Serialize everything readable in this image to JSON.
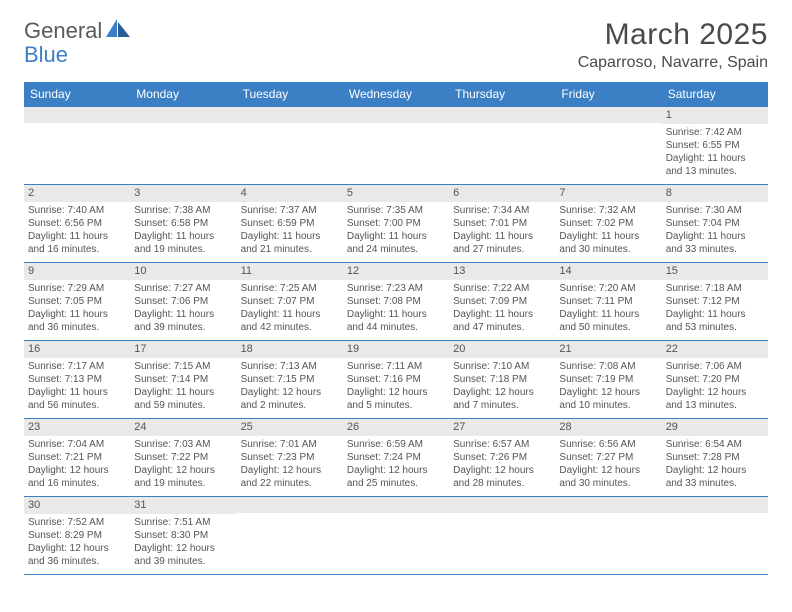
{
  "logo": {
    "text1": "General",
    "text2": "Blue"
  },
  "title": "March 2025",
  "location": "Caparroso, Navarre, Spain",
  "colors": {
    "header_bg": "#3b7fc4",
    "header_text": "#ffffff",
    "border": "#3b7fc4",
    "daynum_bg": "#e9e9e9",
    "body_text": "#555555",
    "page_bg": "#ffffff"
  },
  "weekdays": [
    "Sunday",
    "Monday",
    "Tuesday",
    "Wednesday",
    "Thursday",
    "Friday",
    "Saturday"
  ],
  "weeks": [
    [
      {
        "n": "",
        "lines": [
          "",
          "",
          "",
          ""
        ]
      },
      {
        "n": "",
        "lines": [
          "",
          "",
          "",
          ""
        ]
      },
      {
        "n": "",
        "lines": [
          "",
          "",
          "",
          ""
        ]
      },
      {
        "n": "",
        "lines": [
          "",
          "",
          "",
          ""
        ]
      },
      {
        "n": "",
        "lines": [
          "",
          "",
          "",
          ""
        ]
      },
      {
        "n": "",
        "lines": [
          "",
          "",
          "",
          ""
        ]
      },
      {
        "n": "1",
        "lines": [
          "Sunrise: 7:42 AM",
          "Sunset: 6:55 PM",
          "Daylight: 11 hours",
          "and 13 minutes."
        ]
      }
    ],
    [
      {
        "n": "2",
        "lines": [
          "Sunrise: 7:40 AM",
          "Sunset: 6:56 PM",
          "Daylight: 11 hours",
          "and 16 minutes."
        ]
      },
      {
        "n": "3",
        "lines": [
          "Sunrise: 7:38 AM",
          "Sunset: 6:58 PM",
          "Daylight: 11 hours",
          "and 19 minutes."
        ]
      },
      {
        "n": "4",
        "lines": [
          "Sunrise: 7:37 AM",
          "Sunset: 6:59 PM",
          "Daylight: 11 hours",
          "and 21 minutes."
        ]
      },
      {
        "n": "5",
        "lines": [
          "Sunrise: 7:35 AM",
          "Sunset: 7:00 PM",
          "Daylight: 11 hours",
          "and 24 minutes."
        ]
      },
      {
        "n": "6",
        "lines": [
          "Sunrise: 7:34 AM",
          "Sunset: 7:01 PM",
          "Daylight: 11 hours",
          "and 27 minutes."
        ]
      },
      {
        "n": "7",
        "lines": [
          "Sunrise: 7:32 AM",
          "Sunset: 7:02 PM",
          "Daylight: 11 hours",
          "and 30 minutes."
        ]
      },
      {
        "n": "8",
        "lines": [
          "Sunrise: 7:30 AM",
          "Sunset: 7:04 PM",
          "Daylight: 11 hours",
          "and 33 minutes."
        ]
      }
    ],
    [
      {
        "n": "9",
        "lines": [
          "Sunrise: 7:29 AM",
          "Sunset: 7:05 PM",
          "Daylight: 11 hours",
          "and 36 minutes."
        ]
      },
      {
        "n": "10",
        "lines": [
          "Sunrise: 7:27 AM",
          "Sunset: 7:06 PM",
          "Daylight: 11 hours",
          "and 39 minutes."
        ]
      },
      {
        "n": "11",
        "lines": [
          "Sunrise: 7:25 AM",
          "Sunset: 7:07 PM",
          "Daylight: 11 hours",
          "and 42 minutes."
        ]
      },
      {
        "n": "12",
        "lines": [
          "Sunrise: 7:23 AM",
          "Sunset: 7:08 PM",
          "Daylight: 11 hours",
          "and 44 minutes."
        ]
      },
      {
        "n": "13",
        "lines": [
          "Sunrise: 7:22 AM",
          "Sunset: 7:09 PM",
          "Daylight: 11 hours",
          "and 47 minutes."
        ]
      },
      {
        "n": "14",
        "lines": [
          "Sunrise: 7:20 AM",
          "Sunset: 7:11 PM",
          "Daylight: 11 hours",
          "and 50 minutes."
        ]
      },
      {
        "n": "15",
        "lines": [
          "Sunrise: 7:18 AM",
          "Sunset: 7:12 PM",
          "Daylight: 11 hours",
          "and 53 minutes."
        ]
      }
    ],
    [
      {
        "n": "16",
        "lines": [
          "Sunrise: 7:17 AM",
          "Sunset: 7:13 PM",
          "Daylight: 11 hours",
          "and 56 minutes."
        ]
      },
      {
        "n": "17",
        "lines": [
          "Sunrise: 7:15 AM",
          "Sunset: 7:14 PM",
          "Daylight: 11 hours",
          "and 59 minutes."
        ]
      },
      {
        "n": "18",
        "lines": [
          "Sunrise: 7:13 AM",
          "Sunset: 7:15 PM",
          "Daylight: 12 hours",
          "and 2 minutes."
        ]
      },
      {
        "n": "19",
        "lines": [
          "Sunrise: 7:11 AM",
          "Sunset: 7:16 PM",
          "Daylight: 12 hours",
          "and 5 minutes."
        ]
      },
      {
        "n": "20",
        "lines": [
          "Sunrise: 7:10 AM",
          "Sunset: 7:18 PM",
          "Daylight: 12 hours",
          "and 7 minutes."
        ]
      },
      {
        "n": "21",
        "lines": [
          "Sunrise: 7:08 AM",
          "Sunset: 7:19 PM",
          "Daylight: 12 hours",
          "and 10 minutes."
        ]
      },
      {
        "n": "22",
        "lines": [
          "Sunrise: 7:06 AM",
          "Sunset: 7:20 PM",
          "Daylight: 12 hours",
          "and 13 minutes."
        ]
      }
    ],
    [
      {
        "n": "23",
        "lines": [
          "Sunrise: 7:04 AM",
          "Sunset: 7:21 PM",
          "Daylight: 12 hours",
          "and 16 minutes."
        ]
      },
      {
        "n": "24",
        "lines": [
          "Sunrise: 7:03 AM",
          "Sunset: 7:22 PM",
          "Daylight: 12 hours",
          "and 19 minutes."
        ]
      },
      {
        "n": "25",
        "lines": [
          "Sunrise: 7:01 AM",
          "Sunset: 7:23 PM",
          "Daylight: 12 hours",
          "and 22 minutes."
        ]
      },
      {
        "n": "26",
        "lines": [
          "Sunrise: 6:59 AM",
          "Sunset: 7:24 PM",
          "Daylight: 12 hours",
          "and 25 minutes."
        ]
      },
      {
        "n": "27",
        "lines": [
          "Sunrise: 6:57 AM",
          "Sunset: 7:26 PM",
          "Daylight: 12 hours",
          "and 28 minutes."
        ]
      },
      {
        "n": "28",
        "lines": [
          "Sunrise: 6:56 AM",
          "Sunset: 7:27 PM",
          "Daylight: 12 hours",
          "and 30 minutes."
        ]
      },
      {
        "n": "29",
        "lines": [
          "Sunrise: 6:54 AM",
          "Sunset: 7:28 PM",
          "Daylight: 12 hours",
          "and 33 minutes."
        ]
      }
    ],
    [
      {
        "n": "30",
        "lines": [
          "Sunrise: 7:52 AM",
          "Sunset: 8:29 PM",
          "Daylight: 12 hours",
          "and 36 minutes."
        ]
      },
      {
        "n": "31",
        "lines": [
          "Sunrise: 7:51 AM",
          "Sunset: 8:30 PM",
          "Daylight: 12 hours",
          "and 39 minutes."
        ]
      },
      {
        "n": "",
        "lines": [
          "",
          "",
          "",
          ""
        ]
      },
      {
        "n": "",
        "lines": [
          "",
          "",
          "",
          ""
        ]
      },
      {
        "n": "",
        "lines": [
          "",
          "",
          "",
          ""
        ]
      },
      {
        "n": "",
        "lines": [
          "",
          "",
          "",
          ""
        ]
      },
      {
        "n": "",
        "lines": [
          "",
          "",
          "",
          ""
        ]
      }
    ]
  ]
}
